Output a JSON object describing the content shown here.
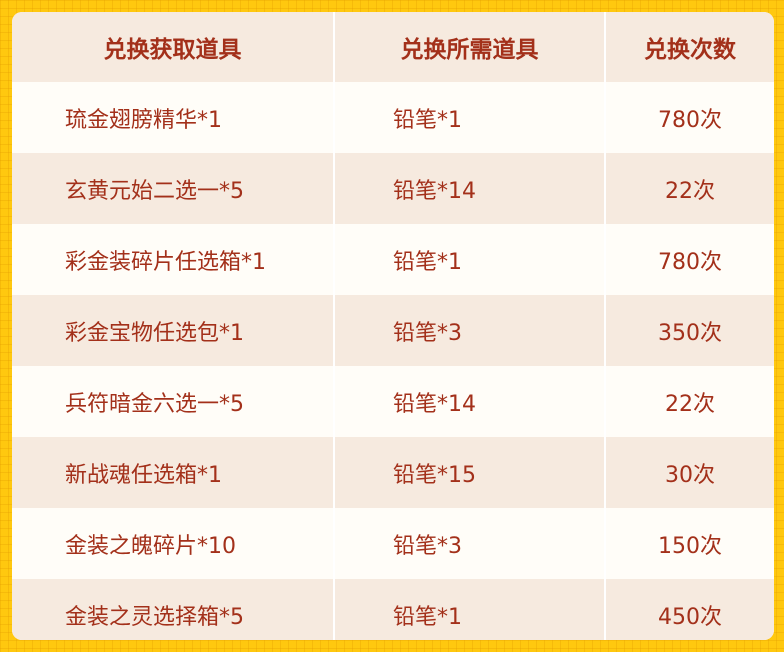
{
  "headers": [
    "兑换获取道具",
    "兑换所需道具",
    "兑换次数"
  ],
  "rows": [
    [
      "琉金翅膀精华*1",
      "铅笔*1",
      "780次"
    ],
    [
      "玄黄元始二选一*5",
      "铅笔*14",
      "22次"
    ],
    [
      "彩金装碎片任选箱*1",
      "铅笔*1",
      "780次"
    ],
    [
      "彩金宝物任选包*1",
      "铅笔*3",
      "350次"
    ],
    [
      "兵符暗金六选一*5",
      "铅笔*14",
      "22次"
    ],
    [
      "新战魂任选箱*1",
      "铅笔*15",
      "30次"
    ],
    [
      "金装之魄碎片*10",
      "铅笔*3",
      "150次"
    ],
    [
      "金装之灵选择箱*5",
      "铅笔*1",
      "450次"
    ]
  ],
  "colors": {
    "text": "#A3301A",
    "background": "#FFC80F",
    "row_alt": "#F6EADF"
  }
}
